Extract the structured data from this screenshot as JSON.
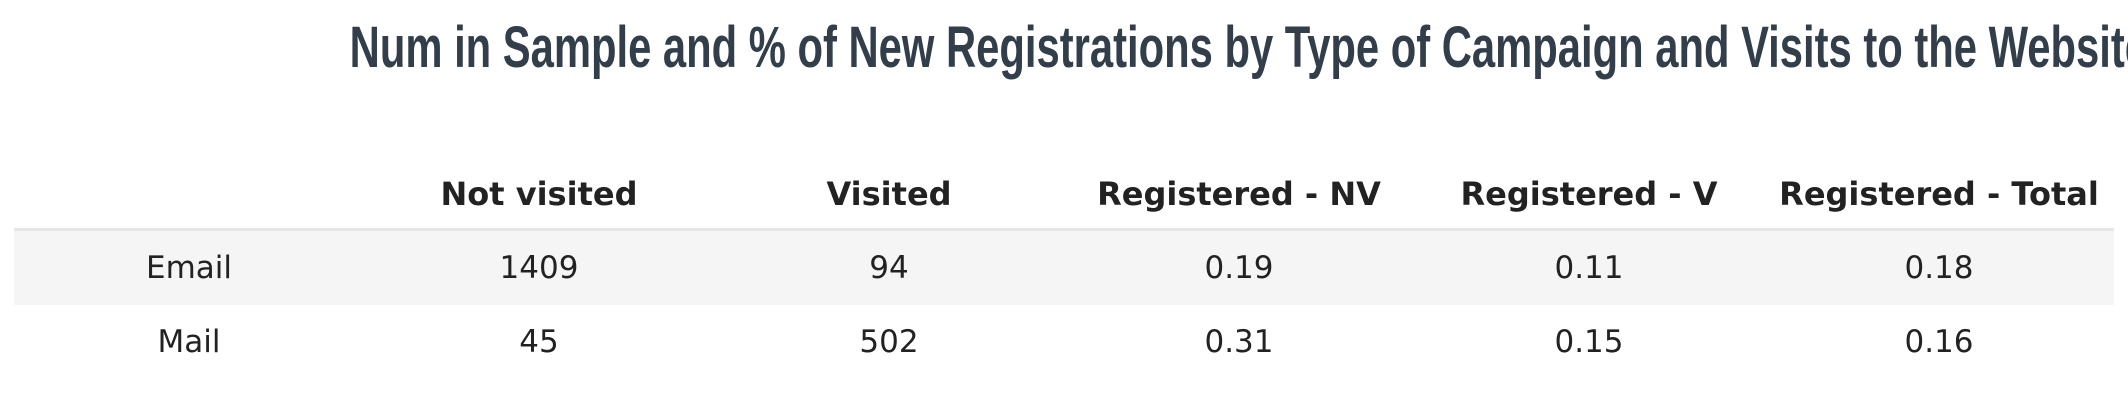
{
  "header": {
    "title": "Num in Sample and % of New Registrations by Type of Campaign and Visits to the Website"
  },
  "table": {
    "columns": [
      "",
      "Not visited",
      "Visited",
      "Registered - NV",
      "Registered - V",
      "Registered - Total"
    ],
    "rows": [
      [
        "Email",
        1409,
        94,
        0.19,
        0.11,
        0.18
      ],
      [
        "Mail",
        45,
        502,
        0.31,
        0.15,
        0.16
      ]
    ]
  }
}
